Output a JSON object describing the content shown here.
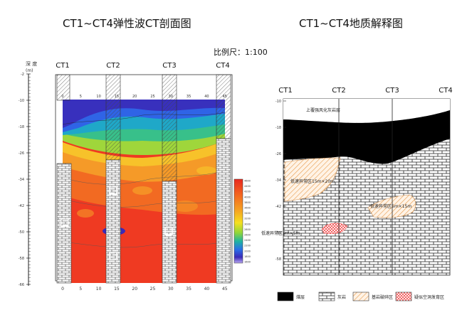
{
  "left_panel": {
    "title": "CT1~CT4弹性波CT剖面图",
    "scale": "比例尺：1:100",
    "axis_header": "深 度",
    "axis_unit": "(m)",
    "wells": [
      "CT1",
      "CT2",
      "CT3",
      "CT4"
    ],
    "depth_ticks": [
      "-2",
      "-10",
      "-18",
      "-26",
      "-34",
      "-42",
      "-50",
      "-58",
      "-66"
    ],
    "x_ticks": [
      "0",
      "5",
      "10",
      "15",
      "20",
      "25",
      "30",
      "35",
      "40",
      "45"
    ],
    "top_ticks": [
      "0",
      "5",
      "10",
      "15",
      "20",
      "25",
      "30",
      "35",
      "40",
      "45"
    ],
    "legend_ticks": [
      "4600",
      "4400",
      "4200",
      "4000",
      "3800",
      "3600",
      "3400",
      "3200",
      "3000",
      "2800",
      "2600",
      "2400",
      "2200",
      "2000",
      "1800",
      "1600"
    ]
  },
  "right_panel": {
    "title": "CT1~CT4地质解释图",
    "wells": [
      "CT1",
      "CT2",
      "CT3",
      "CT4"
    ],
    "depth_ticks": [
      "-10",
      "-18",
      "-26",
      "-34",
      "-42",
      "-50",
      "-58"
    ],
    "labels": {
      "top_layer": "上覆强风化灰岩层",
      "zone1": "低速异常区15m×20m",
      "zone2": "低速异常区5m×15m",
      "zone3": "低速异常区5m×5m"
    }
  },
  "legend": [
    {
      "label": "煤层",
      "pattern": "black"
    },
    {
      "label": "灰岩",
      "pattern": "brick"
    },
    {
      "label": "基岩破碎区",
      "pattern": "hatch-orange"
    },
    {
      "label": "疑似空洞发育区",
      "pattern": "cross-red"
    }
  ]
}
